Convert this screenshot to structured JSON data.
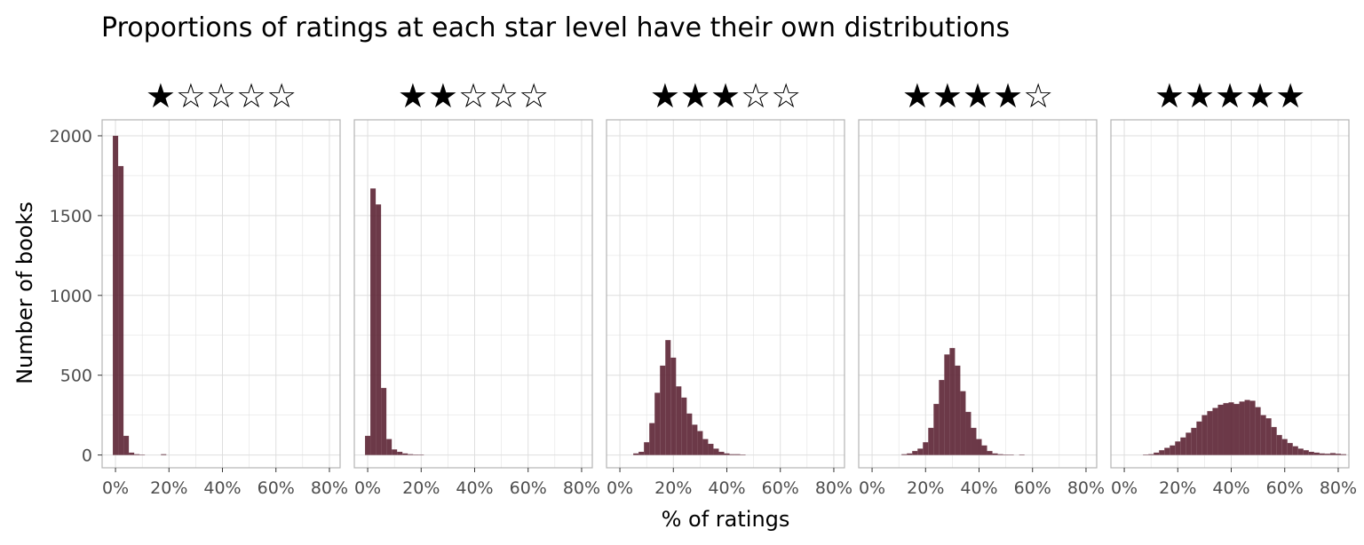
{
  "title": "Proportions of ratings at each star level have their own distributions",
  "colors": {
    "bar": "#5c2434",
    "grid": "#dedede",
    "panel_border": "#b3b3b3",
    "tick_text": "#4d4d4d"
  },
  "chart_data": {
    "type": "bar",
    "subtype": "faceted histogram",
    "title": "Proportions of ratings at each star level have their own distributions",
    "xlabel": "% of ratings",
    "ylabel": "Number of books",
    "xlim": [
      -0.05,
      0.84
    ],
    "ylim": [
      -80,
      2100
    ],
    "x_ticks": [
      0,
      0.2,
      0.4,
      0.6,
      0.8
    ],
    "x_tick_labels": [
      "0%",
      "20%",
      "40%",
      "60%",
      "80%"
    ],
    "y_ticks": [
      0,
      500,
      1000,
      1500,
      2000
    ],
    "y_tick_labels": [
      "0",
      "500",
      "1000",
      "1500",
      "2000"
    ],
    "bin_width": 0.02,
    "grid": true,
    "shared_y": true,
    "facets": [
      {
        "label": "★☆☆☆☆",
        "bin_centers": [
          0.0,
          0.02,
          0.04,
          0.06,
          0.08,
          0.1,
          0.18
        ],
        "counts": [
          2000,
          1810,
          120,
          15,
          5,
          2,
          5
        ]
      },
      {
        "label": "★★☆☆☆",
        "bin_centers": [
          0.0,
          0.02,
          0.04,
          0.06,
          0.08,
          0.1,
          0.12,
          0.14,
          0.16,
          0.18,
          0.2
        ],
        "counts": [
          120,
          1670,
          1570,
          420,
          100,
          35,
          20,
          10,
          5,
          3,
          2
        ]
      },
      {
        "label": "★★★☆☆",
        "bin_centers": [
          0.06,
          0.08,
          0.1,
          0.12,
          0.14,
          0.16,
          0.18,
          0.2,
          0.22,
          0.24,
          0.26,
          0.28,
          0.3,
          0.32,
          0.34,
          0.36,
          0.38,
          0.4,
          0.42,
          0.44,
          0.46
        ],
        "counts": [
          10,
          20,
          80,
          200,
          390,
          560,
          720,
          610,
          430,
          360,
          260,
          190,
          150,
          100,
          70,
          40,
          20,
          10,
          5,
          5,
          3
        ]
      },
      {
        "label": "★★★★☆",
        "bin_centers": [
          0.12,
          0.14,
          0.16,
          0.18,
          0.2,
          0.22,
          0.24,
          0.26,
          0.28,
          0.3,
          0.32,
          0.34,
          0.36,
          0.38,
          0.4,
          0.42,
          0.44,
          0.46,
          0.48,
          0.5,
          0.52,
          0.56
        ],
        "counts": [
          5,
          10,
          25,
          40,
          80,
          170,
          320,
          470,
          630,
          670,
          560,
          400,
          270,
          170,
          100,
          60,
          25,
          10,
          5,
          3,
          2,
          3
        ]
      },
      {
        "label": "★★★★★",
        "bin_centers": [
          0.08,
          0.1,
          0.12,
          0.14,
          0.16,
          0.18,
          0.2,
          0.22,
          0.24,
          0.26,
          0.28,
          0.3,
          0.32,
          0.34,
          0.36,
          0.38,
          0.4,
          0.42,
          0.44,
          0.46,
          0.48,
          0.5,
          0.52,
          0.54,
          0.56,
          0.58,
          0.6,
          0.62,
          0.64,
          0.66,
          0.68,
          0.7,
          0.72,
          0.74,
          0.76,
          0.78,
          0.8,
          0.82
        ],
        "counts": [
          3,
          5,
          15,
          30,
          45,
          60,
          85,
          110,
          140,
          170,
          210,
          250,
          275,
          295,
          315,
          325,
          330,
          320,
          335,
          345,
          340,
          300,
          250,
          230,
          175,
          125,
          100,
          75,
          55,
          40,
          30,
          20,
          15,
          10,
          8,
          12,
          8,
          5
        ]
      }
    ]
  }
}
